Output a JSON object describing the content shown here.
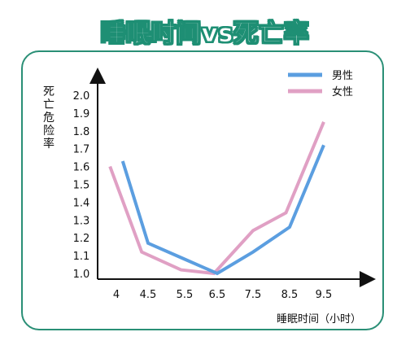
{
  "title": "睡眠时间vs死亡率",
  "chart_data": {
    "type": "line",
    "ylabel": "死亡危险率",
    "xlabel": "睡眠时间（小时）",
    "y_ticks": [
      "1.0",
      "1.1",
      "1.2",
      "1.3",
      "1.4",
      "1.5",
      "1.6",
      "1.7",
      "1.8",
      "1.9",
      "2.0"
    ],
    "x_ticks": [
      "4",
      "4.5",
      "5.5",
      "6.5",
      "7.5",
      "8.5",
      "9.5"
    ],
    "ylim": [
      1.0,
      2.0
    ],
    "grid": false,
    "legend_position": "top-right",
    "series": [
      {
        "name": "男性",
        "color": "#5b9ee0",
        "points": [
          [
            4.1,
            1.63
          ],
          [
            4.5,
            1.17
          ],
          [
            5.5,
            1.08
          ],
          [
            6.5,
            1.0
          ],
          [
            7.5,
            1.12
          ],
          [
            8.5,
            1.26
          ],
          [
            9.5,
            1.72
          ]
        ]
      },
      {
        "name": "女性",
        "color": "#e0a0c4",
        "points": [
          [
            3.9,
            1.6
          ],
          [
            4.4,
            1.12
          ],
          [
            5.4,
            1.02
          ],
          [
            6.4,
            1.0
          ],
          [
            7.5,
            1.24
          ],
          [
            8.4,
            1.34
          ],
          [
            9.5,
            1.85
          ]
        ]
      }
    ]
  }
}
